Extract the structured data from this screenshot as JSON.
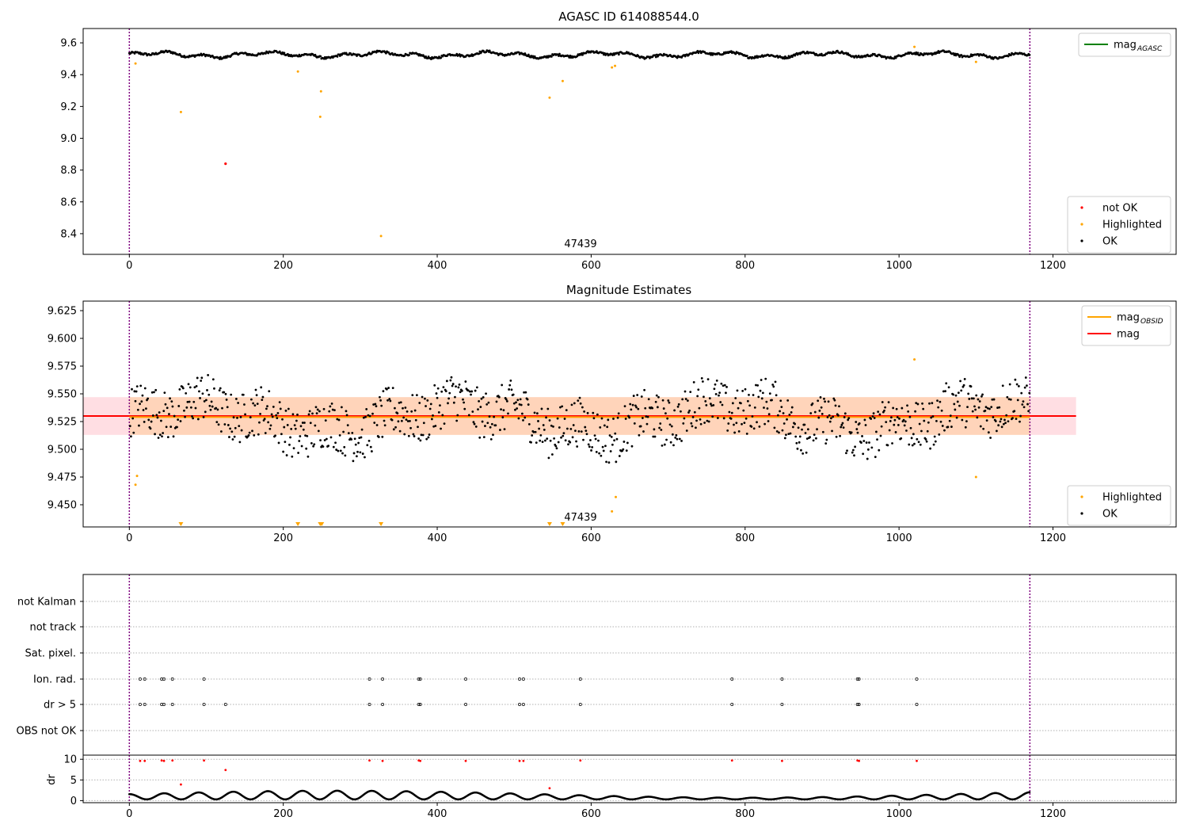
{
  "colors": {
    "ok": "#000000",
    "not_ok": "#ff0000",
    "highlighted": "#ffa500",
    "mag_agasc": "#008000",
    "mag_obsid": "#ffa500",
    "mag": "#ff0000",
    "band_mag": "#ffb6c1",
    "band_obsid": "#ffcc99",
    "bound_line": "#800080"
  },
  "chart_data": [
    {
      "type": "scatter",
      "title": "AGASC ID 614088544.0",
      "xlabel": "",
      "ylabel": "",
      "xlim": [
        -60,
        1360
      ],
      "ylim": [
        8.27,
        9.69
      ],
      "xticks": [
        "0",
        "200",
        "400",
        "600",
        "800",
        "1000",
        "1200"
      ],
      "xtick_values": [
        0,
        200,
        400,
        600,
        800,
        1000,
        1200
      ],
      "yticks": [
        "8.4",
        "8.6",
        "8.8",
        "9.0",
        "9.2",
        "9.4",
        "9.6"
      ],
      "ytick_values": [
        8.4,
        8.6,
        8.8,
        9.0,
        9.2,
        9.4,
        9.6
      ],
      "obsid_bounds": [
        0,
        1170
      ],
      "obsid_label": "47439",
      "obsid_label_x": 585,
      "ok_series": {
        "x_range": [
          0,
          1170
        ],
        "base": 9.525,
        "amplitude": 0.022
      },
      "highlighted_points": [
        {
          "x": 8,
          "y": 9.47
        },
        {
          "x": 67,
          "y": 9.165
        },
        {
          "x": 219,
          "y": 9.42
        },
        {
          "x": 248,
          "y": 9.135
        },
        {
          "x": 249,
          "y": 9.295
        },
        {
          "x": 327,
          "y": 8.385
        },
        {
          "x": 546,
          "y": 9.255
        },
        {
          "x": 563,
          "y": 9.36
        },
        {
          "x": 627,
          "y": 9.445
        },
        {
          "x": 631,
          "y": 9.455
        },
        {
          "x": 1020,
          "y": 9.575
        },
        {
          "x": 1100,
          "y": 9.48
        }
      ],
      "not_ok_points": [
        {
          "x": 125,
          "y": 8.84
        }
      ],
      "legends": [
        {
          "position": "top-right",
          "entries": [
            {
              "label": "mag",
              "sub": "AGASC",
              "kind": "line",
              "color": "#008000"
            }
          ]
        },
        {
          "position": "lower-right",
          "entries": [
            {
              "label": "not OK",
              "kind": "dot",
              "color": "#ff0000"
            },
            {
              "label": "Highlighted",
              "kind": "dot",
              "color": "#ffa500"
            },
            {
              "label": "OK",
              "kind": "dot",
              "color": "#000000"
            }
          ]
        }
      ]
    },
    {
      "type": "scatter",
      "title": "Magnitude Estimates",
      "xlabel": "",
      "ylabel": "",
      "xlim": [
        -60,
        1360
      ],
      "ylim": [
        9.43,
        9.6336
      ],
      "xticks": [
        "0",
        "200",
        "400",
        "600",
        "800",
        "1000",
        "1200"
      ],
      "xtick_values": [
        0,
        200,
        400,
        600,
        800,
        1000,
        1200
      ],
      "yticks": [
        "9.450",
        "9.475",
        "9.500",
        "9.525",
        "9.550",
        "9.575",
        "9.600",
        "9.625"
      ],
      "ytick_values": [
        9.45,
        9.475,
        9.5,
        9.525,
        9.55,
        9.575,
        9.6,
        9.625
      ],
      "obsid_bounds": [
        0,
        1170
      ],
      "obsid_label": "47439",
      "obsid_label_x": 585,
      "mag": 9.53,
      "mag_band": [
        9.513,
        9.547
      ],
      "mag_band_x": [
        -60,
        1230
      ],
      "mag_obsid": 9.529,
      "mag_obsid_band": [
        9.513,
        9.547
      ],
      "ok_series": {
        "x_range": [
          0,
          1170
        ],
        "base": 9.528,
        "amplitude": 0.045
      },
      "highlighted_points": [
        {
          "x": 8,
          "y": 9.468
        },
        {
          "x": 10,
          "y": 9.476
        },
        {
          "x": 627,
          "y": 9.444
        },
        {
          "x": 632,
          "y": 9.457
        },
        {
          "x": 1020,
          "y": 9.581
        },
        {
          "x": 1100,
          "y": 9.475
        }
      ],
      "offscale_markers_x": [
        67,
        219,
        248,
        250,
        327,
        546,
        563
      ],
      "legends": [
        {
          "position": "top-right",
          "entries": [
            {
              "label": "mag",
              "sub": "OBSID",
              "kind": "line",
              "color": "#ffa500"
            },
            {
              "label": "mag",
              "kind": "line",
              "color": "#ff0000"
            }
          ]
        },
        {
          "position": "lower-right",
          "entries": [
            {
              "label": "Highlighted",
              "kind": "dot",
              "color": "#ffa500"
            },
            {
              "label": "OK",
              "kind": "dot",
              "color": "#000000"
            }
          ]
        }
      ]
    },
    {
      "type": "scatter",
      "title": "",
      "xlim": [
        -60,
        1360
      ],
      "categories": [
        "not Kalman",
        "not track",
        "Sat. pixel.",
        "Ion. rad.",
        "dr > 5",
        "OBS not OK"
      ],
      "flag_x_ion_rad": [
        14,
        20,
        42,
        45,
        56,
        97,
        312,
        329,
        376,
        378,
        437,
        507,
        512,
        586,
        783,
        848,
        946,
        948,
        1023
      ],
      "flag_x_dr5": [
        14,
        20,
        42,
        45,
        56,
        97,
        125,
        312,
        329,
        376,
        378,
        437,
        507,
        512,
        586,
        783,
        848,
        946,
        948,
        1023
      ],
      "obsid_bounds": [
        0,
        1170
      ]
    },
    {
      "type": "scatter",
      "title": "",
      "xlabel": "",
      "ylabel": "dr",
      "xlim": [
        -60,
        1360
      ],
      "ylim": [
        -0.5,
        11
      ],
      "xticks": [
        "0",
        "200",
        "400",
        "600",
        "800",
        "1000",
        "1200"
      ],
      "xtick_values": [
        0,
        200,
        400,
        600,
        800,
        1000,
        1200
      ],
      "yticks": [
        "0",
        "5",
        "10"
      ],
      "ytick_values": [
        0,
        5,
        10
      ],
      "obsid_bounds": [
        0,
        1170
      ],
      "red_points": [
        {
          "x": 14,
          "y": 9.6
        },
        {
          "x": 20,
          "y": 9.6
        },
        {
          "x": 42,
          "y": 9.7
        },
        {
          "x": 45,
          "y": 9.6
        },
        {
          "x": 56,
          "y": 9.7
        },
        {
          "x": 67,
          "y": 3.9
        },
        {
          "x": 97,
          "y": 9.7
        },
        {
          "x": 125,
          "y": 7.4
        },
        {
          "x": 312,
          "y": 9.7
        },
        {
          "x": 329,
          "y": 9.6
        },
        {
          "x": 376,
          "y": 9.7
        },
        {
          "x": 378,
          "y": 9.6
        },
        {
          "x": 437,
          "y": 9.6
        },
        {
          "x": 507,
          "y": 9.6
        },
        {
          "x": 512,
          "y": 9.6
        },
        {
          "x": 546,
          "y": 3.0
        },
        {
          "x": 586,
          "y": 9.7
        },
        {
          "x": 783,
          "y": 9.7
        },
        {
          "x": 848,
          "y": 9.6
        },
        {
          "x": 946,
          "y": 9.7
        },
        {
          "x": 948,
          "y": 9.6
        },
        {
          "x": 1023,
          "y": 9.6
        }
      ],
      "black_series": {
        "x_range": [
          0,
          1170
        ],
        "min": 0.3,
        "max": 2.4
      }
    }
  ]
}
